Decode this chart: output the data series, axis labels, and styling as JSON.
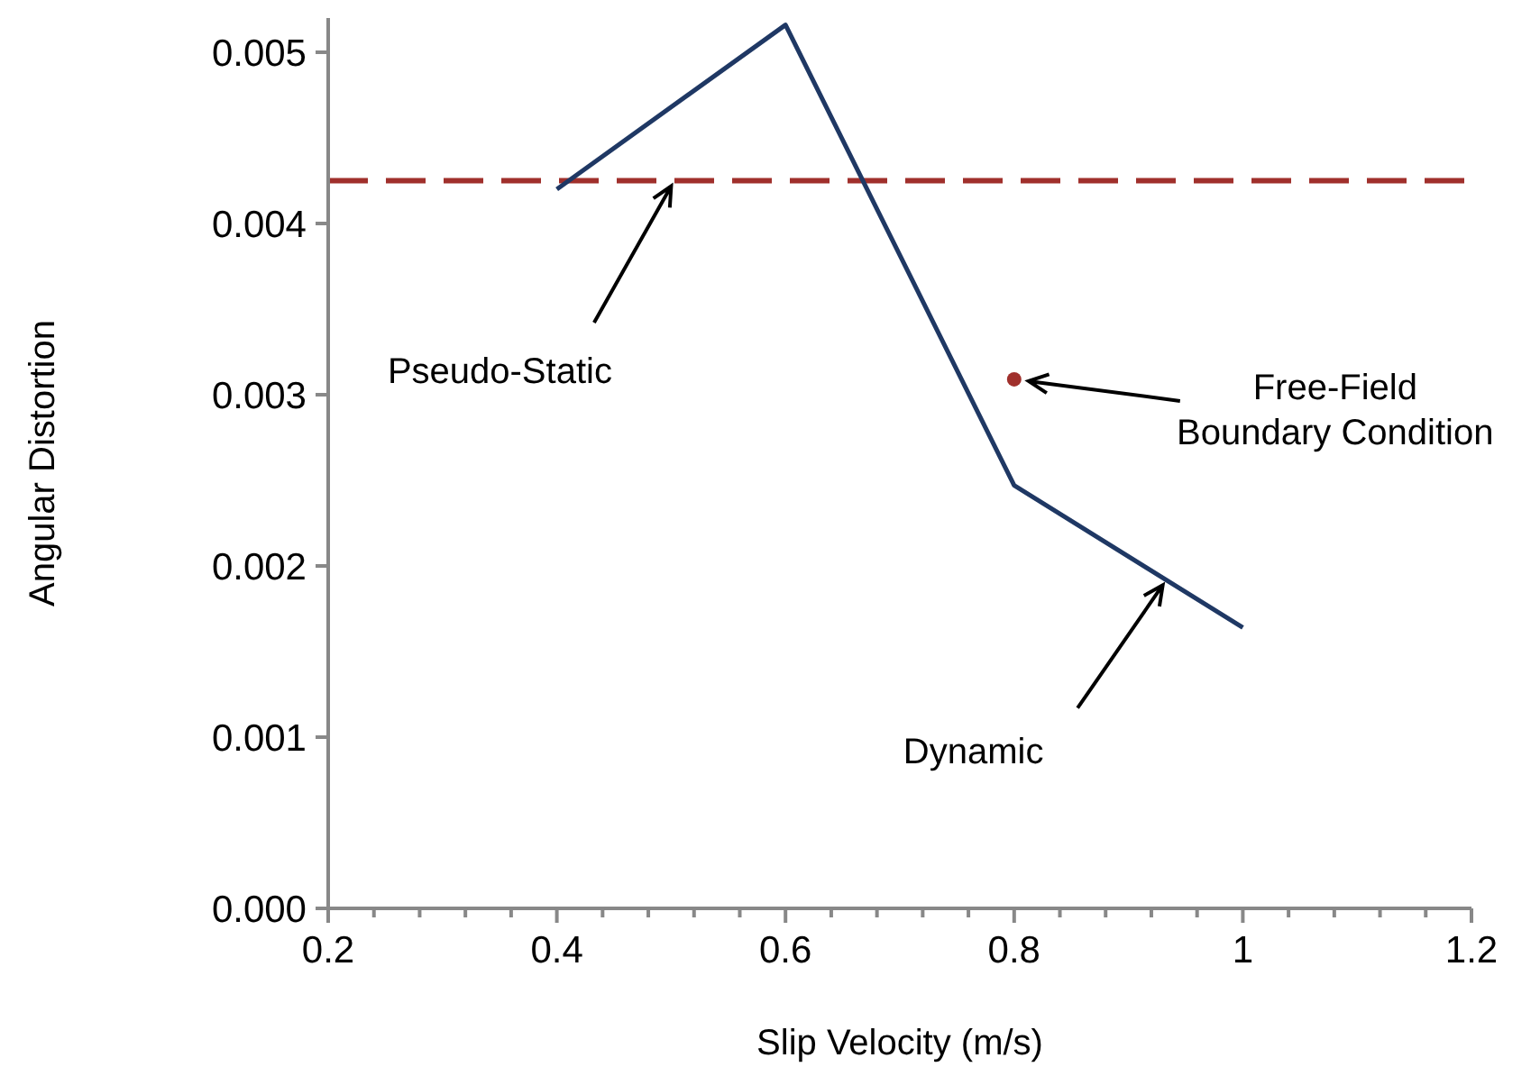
{
  "chart_data": {
    "type": "line",
    "xlabel": "Slip Velocity (m/s)",
    "ylabel": "Angular Distortion",
    "xlim": [
      0.2,
      1.2
    ],
    "ylim": [
      0,
      0.0052
    ],
    "xticks": [
      0.2,
      {
        "value": 0.24,
        "label": null
      },
      {
        "value": 0.28,
        "label": null
      },
      {
        "value": 0.32,
        "label": null
      },
      {
        "value": 0.36,
        "label": null
      },
      0.4,
      {
        "value": 0.44,
        "label": null
      },
      {
        "value": 0.48,
        "label": null
      },
      {
        "value": 0.52,
        "label": null
      },
      {
        "value": 0.56,
        "label": null
      },
      0.6,
      {
        "value": 0.64,
        "label": null
      },
      {
        "value": 0.68,
        "label": null
      },
      {
        "value": 0.72,
        "label": null
      },
      {
        "value": 0.76,
        "label": null
      },
      0.8,
      {
        "value": 0.84,
        "label": null
      },
      {
        "value": 0.88,
        "label": null
      },
      {
        "value": 0.92,
        "label": null
      },
      {
        "value": 0.96,
        "label": null
      },
      1,
      {
        "value": 1.04,
        "label": null
      },
      {
        "value": 1.08,
        "label": null
      },
      {
        "value": 1.12,
        "label": null
      },
      {
        "value": 1.16,
        "label": null
      },
      1.2
    ],
    "yticks": [
      {
        "value": 0,
        "label": "0.000"
      },
      0.001,
      0.002,
      0.003,
      0.004,
      0.005
    ],
    "grid": false,
    "series": [
      {
        "color": "#1f3864",
        "x": [
          0.4,
          0.6,
          0.8,
          1.0
        ],
        "values": [
          0.0042,
          0.00516,
          0.00247,
          0.00164
        ],
        "marker": "none",
        "line_style": "solid"
      },
      {
        "type": "scatter",
        "color": "#a0302c",
        "x": [
          0.8
        ],
        "values": [
          0.00309
        ],
        "marker": "circle"
      }
    ],
    "ref_lines": [
      {
        "axis": "y",
        "value": 0.00425,
        "color": "#a0302c",
        "line_style": "dashed"
      }
    ],
    "annotations": [
      {
        "text": "Pseudo-Static",
        "x": 0.5,
        "y": 0.00425
      },
      {
        "text": "Free-Field\nBoundary Condition",
        "x": 0.8,
        "y": 0.00309
      },
      {
        "text": "Dynamic",
        "x": 0.93,
        "y": 0.00192
      }
    ]
  }
}
